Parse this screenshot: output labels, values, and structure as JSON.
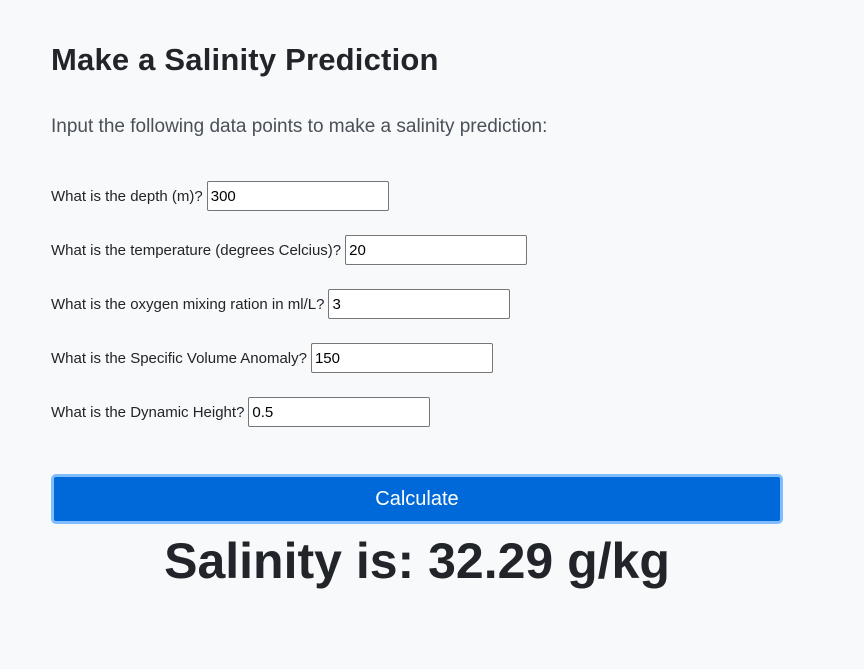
{
  "page": {
    "title": "Make a Salinity Prediction",
    "lead": "Input the following data points to make a salinity prediction:"
  },
  "form": {
    "fields": [
      {
        "label": "What is the depth (m)?",
        "value": "300"
      },
      {
        "label": "What is the temperature (degrees Celcius)?",
        "value": "20"
      },
      {
        "label": "What is the oxygen mixing ration in ml/L?",
        "value": "3"
      },
      {
        "label": "What is the Specific Volume Anomaly?",
        "value": "150"
      },
      {
        "label": "What is the Dynamic Height?",
        "value": "0.5"
      }
    ],
    "submit_label": "Calculate"
  },
  "result": {
    "text": "Salinity is: 32.29 g/kg"
  },
  "colors": {
    "background": "#f8f9fa",
    "button": "#0069d9",
    "button_focus_ring": "#80bdff",
    "text": "#212529"
  }
}
